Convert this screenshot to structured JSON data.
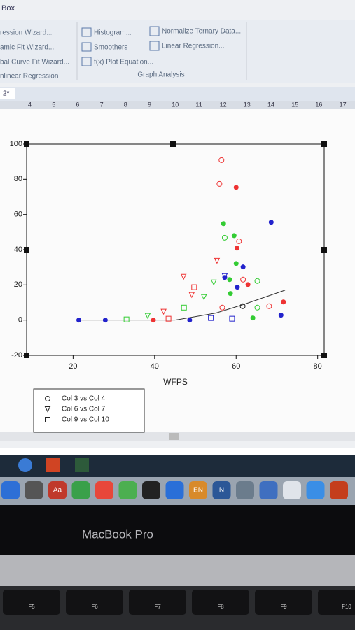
{
  "ribbon": {
    "group_title": "Box",
    "left_items": [
      "ression Wizard...",
      "amic Fit Wizard...",
      "bal Curve Fit Wizard..."
    ],
    "left_group": "nlinear Regression",
    "mid_items": [
      "Histogram...",
      "Smoothers",
      "f(x) Plot Equation..."
    ],
    "right_items": [
      "Normalize Ternary Data...",
      "Linear Regression..."
    ],
    "mid_group": "Graph Analysis"
  },
  "tab": "2*",
  "ruler": [
    "4",
    "5",
    "6",
    "7",
    "8",
    "9",
    "10",
    "11",
    "12",
    "13",
    "14",
    "15",
    "16",
    "17"
  ],
  "chart_data": {
    "type": "scatter",
    "x_label": "WFPS",
    "xlim": [
      8.6,
      81.6
    ],
    "xticks": [
      20,
      40,
      60,
      80
    ],
    "ylim": [
      -20,
      100
    ],
    "yticks": [
      -20,
      0,
      20,
      40,
      60,
      80,
      100
    ],
    "series": [
      {
        "name": "Col 3 vs Col 4",
        "marker": "open-circle",
        "x": [
          56.4,
          55.9,
          60.7,
          57.2,
          61.7,
          65.2,
          56.6,
          65.2,
          68.1,
          61.6
        ],
        "values": [
          90.9,
          77.4,
          44.8,
          46.8,
          23,
          22.2,
          7.1,
          7.1,
          7.9,
          7.9
        ],
        "colors": [
          "#e33",
          "#e33",
          "#e33",
          "#3c3",
          "#e33",
          "#3c3",
          "#e33",
          "#3c3",
          "#e33",
          "#222"
        ]
      },
      {
        "name": "Col 6 vs Col 7",
        "marker": "triangle-down",
        "x": [
          55.3,
          47.1,
          54.5,
          52.1,
          49.1,
          57.2,
          42.2,
          38.3
        ],
        "values": [
          33.7,
          24.6,
          21.4,
          13.1,
          14.3,
          25,
          4.8,
          2.4
        ],
        "colors": [
          "#e33",
          "#e33",
          "#3c3",
          "#3c3",
          "#e33",
          "#22c",
          "#e33",
          "#3c3"
        ]
      },
      {
        "name": "Col 9 vs Col 10",
        "marker": "square",
        "x": [
          49.7,
          47.2,
          53.8,
          43.4,
          33.1,
          59
        ],
        "values": [
          18.7,
          7.1,
          1.2,
          0.8,
          0.4,
          0.8
        ],
        "colors": [
          "#e33",
          "#3c3",
          "#22c",
          "#e33",
          "#3c3",
          "#22c"
        ]
      },
      {
        "marker": "filled-circle",
        "x": [
          60,
          60.2,
          56.9,
          59.5,
          68.6,
          60,
          61.7,
          57.2,
          58.4,
          60.3,
          62.9,
          58.6,
          71.6,
          71,
          21.4,
          27.9,
          39.7,
          48.6,
          64.1
        ],
        "values": [
          75.4,
          40.9,
          54.8,
          48,
          55.6,
          32.1,
          30.2,
          24.2,
          23,
          18.7,
          20.2,
          15.1,
          10.3,
          2.8,
          0,
          0,
          0,
          0,
          1.2
        ],
        "colors": [
          "#e33",
          "#e33",
          "#3c3",
          "#3c3",
          "#22c",
          "#3c3",
          "#22c",
          "#22c",
          "#3c3",
          "#22c",
          "#e33",
          "#3c3",
          "#e33",
          "#22c",
          "#22c",
          "#22c",
          "#e33",
          "#22c",
          "#3c3"
        ]
      }
    ],
    "fit_line": {
      "x": [
        21,
        45,
        55,
        62,
        72
      ],
      "values": [
        0,
        0,
        4,
        9,
        17
      ]
    }
  },
  "dock_labels": [
    "Aa",
    "EN",
    "N"
  ],
  "laptop": "MacBook Pro",
  "keys": [
    "F5",
    "F6",
    "F7",
    "F8",
    "F9",
    "F10"
  ]
}
